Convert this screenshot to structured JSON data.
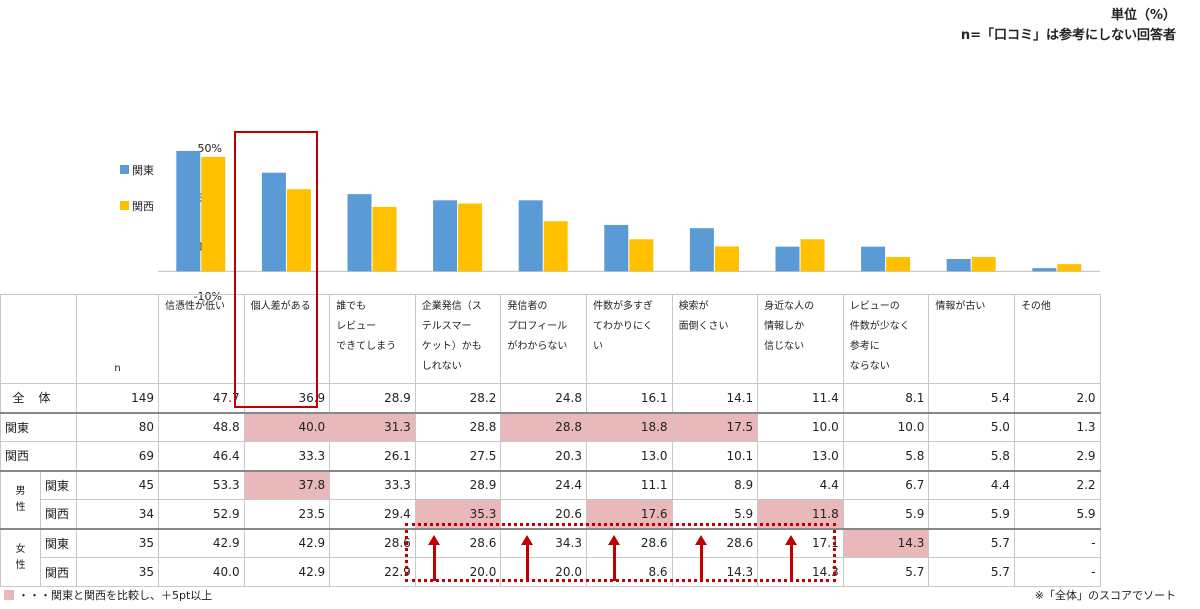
{
  "header": {
    "unit": "単位（%）",
    "note": "n=「口コミ」は参考にしない回答者"
  },
  "chart_data": {
    "type": "bar",
    "categories": [
      "信憑性が低い",
      "個人差がある",
      "誰でもレビューできてしまう",
      "企業発信（ステルスマーケット）かもしれない",
      "発信者のプロフィールがわからない",
      "件数が多すぎてわかりにくい",
      "検索が面倒くさい",
      "身近な人の情報しか信じない",
      "レビューの件数が少なく参考にならない",
      "情報が古い",
      "その他"
    ],
    "category_lines": [
      [
        "信憑性が低い"
      ],
      [
        "個人差がある"
      ],
      [
        "誰でも",
        "レビュー",
        "できてしまう"
      ],
      [
        "企業発信（ス",
        "テルスマー",
        "ケット）かも",
        "しれない"
      ],
      [
        "発信者の",
        "プロフィール",
        "がわからない"
      ],
      [
        "件数が多すぎ",
        "てわかりにく",
        "い"
      ],
      [
        "検索が",
        "面倒くさい"
      ],
      [
        "身近な人の",
        "情報しか",
        "信じない"
      ],
      [
        "レビューの",
        "件数が少なく",
        "参考に",
        "ならない"
      ],
      [
        "情報が古い"
      ],
      [
        "その他"
      ]
    ],
    "series": [
      {
        "name": "関東",
        "color": "#5b9bd5",
        "values": [
          48.8,
          40.0,
          31.3,
          28.8,
          28.8,
          18.8,
          17.5,
          10.0,
          10.0,
          5.0,
          1.3
        ]
      },
      {
        "name": "関西",
        "color": "#ffc000",
        "values": [
          46.4,
          33.3,
          26.1,
          27.5,
          20.3,
          13.0,
          10.1,
          13.0,
          5.8,
          5.8,
          2.9
        ]
      }
    ],
    "ylim": [
      -10,
      50
    ],
    "yticks": [
      "50%",
      "30%",
      "10%",
      "-10%"
    ],
    "ytick_values": [
      50,
      30,
      10,
      -10
    ],
    "legend_position": "left",
    "n_label": "n"
  },
  "table": {
    "total": {
      "label": "全体",
      "n": "149",
      "values": [
        "47.7",
        "36.9",
        "28.9",
        "28.2",
        "24.8",
        "16.1",
        "14.1",
        "11.4",
        "8.1",
        "5.4",
        "2.0"
      ]
    },
    "rows": [
      {
        "group": "",
        "label": "関東",
        "n": "80",
        "values": [
          "48.8",
          "40.0",
          "31.3",
          "28.8",
          "28.8",
          "18.8",
          "17.5",
          "10.0",
          "10.0",
          "5.0",
          "1.3"
        ],
        "highlight": [
          1,
          2,
          4,
          5,
          6
        ]
      },
      {
        "group": "",
        "label": "関西",
        "n": "69",
        "values": [
          "46.4",
          "33.3",
          "26.1",
          "27.5",
          "20.3",
          "13.0",
          "10.1",
          "13.0",
          "5.8",
          "5.8",
          "2.9"
        ],
        "highlight": []
      },
      {
        "group": "男性",
        "label": "関東",
        "n": "45",
        "values": [
          "53.3",
          "37.8",
          "33.3",
          "28.9",
          "24.4",
          "11.1",
          "8.9",
          "4.4",
          "6.7",
          "4.4",
          "2.2"
        ],
        "highlight": [
          1
        ]
      },
      {
        "group": "男性",
        "label": "関西",
        "n": "34",
        "values": [
          "52.9",
          "23.5",
          "29.4",
          "35.3",
          "20.6",
          "17.6",
          "5.9",
          "11.8",
          "5.9",
          "5.9",
          "5.9"
        ],
        "highlight": [
          3,
          5,
          7
        ]
      },
      {
        "group": "女性",
        "label": "関東",
        "n": "35",
        "values": [
          "42.9",
          "42.9",
          "28.6",
          "28.6",
          "34.3",
          "28.6",
          "28.6",
          "17.1",
          "14.3",
          "5.7",
          "-"
        ],
        "highlight": [
          8
        ]
      },
      {
        "group": "女性",
        "label": "関西",
        "n": "35",
        "values": [
          "40.0",
          "42.9",
          "22.9",
          "20.0",
          "20.0",
          "8.6",
          "14.3",
          "14.3",
          "5.7",
          "5.7",
          "-"
        ],
        "highlight": []
      }
    ],
    "groups": [
      {
        "name": "男性",
        "chars": [
          "男",
          "性"
        ]
      },
      {
        "name": "女性",
        "chars": [
          "女",
          "性"
        ]
      }
    ]
  },
  "footnote": "・・・関東と関西を比較し、＋5pt以上",
  "sort_note": "※「全体」のスコアでソート",
  "colors": {
    "highlight": "#e8b8ba",
    "emphasis": "#c00000"
  }
}
